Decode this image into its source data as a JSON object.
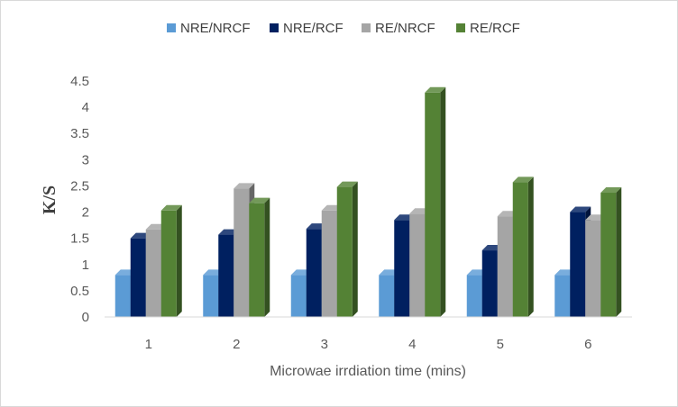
{
  "chart_data": {
    "type": "bar",
    "title": "",
    "xlabel": "Microwae irrdiation time (mins)",
    "ylabel": "K/S",
    "categories": [
      "1",
      "2",
      "3",
      "4",
      "5",
      "6"
    ],
    "ylim": [
      0,
      4.5
    ],
    "yticks": [
      "0",
      "0.5",
      "1",
      "1.5",
      "2",
      "2.5",
      "3",
      "3.5",
      "4",
      "4.5"
    ],
    "grid": false,
    "legend_position": "top",
    "series": [
      {
        "name": "NRE/NRCF",
        "color": "#5B9BD5",
        "values": [
          0.8,
          0.8,
          0.8,
          0.8,
          0.8,
          0.8
        ]
      },
      {
        "name": "NRE/RCF",
        "color": "#002060",
        "values": [
          1.5,
          1.57,
          1.68,
          1.85,
          1.27,
          2.0
        ]
      },
      {
        "name": "RE/NRCF",
        "color": "#A5A5A5",
        "values": [
          1.67,
          2.45,
          2.03,
          1.97,
          1.92,
          1.85
        ]
      },
      {
        "name": "RE/RCF",
        "color": "#548235",
        "values": [
          2.03,
          2.17,
          2.48,
          4.28,
          2.57,
          2.37
        ]
      }
    ]
  }
}
